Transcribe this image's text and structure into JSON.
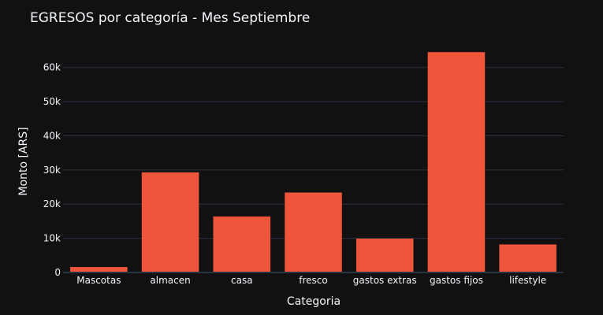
{
  "chart_data": {
    "type": "bar",
    "title": "EGRESOS por categoría - Mes Septiembre",
    "xlabel": "Categoria",
    "ylabel": "Monto [ARS]",
    "categories": [
      "Mascotas",
      "almacen",
      "casa",
      "fresco",
      "gastos extras",
      "gastos fijos",
      "lifestyle"
    ],
    "values": [
      1600,
      29300,
      16400,
      23400,
      9900,
      64500,
      8200
    ],
    "ylim": [
      0,
      68000
    ],
    "yticks": [
      0,
      10000,
      20000,
      30000,
      40000,
      50000,
      60000
    ],
    "ytick_labels": [
      "0",
      "10k",
      "20k",
      "30k",
      "40k",
      "50k",
      "60k"
    ],
    "grid": true,
    "colors": {
      "bar": "#EF553B",
      "background": "#111111",
      "grid": "#283442",
      "text": "#f2f5fa"
    }
  }
}
